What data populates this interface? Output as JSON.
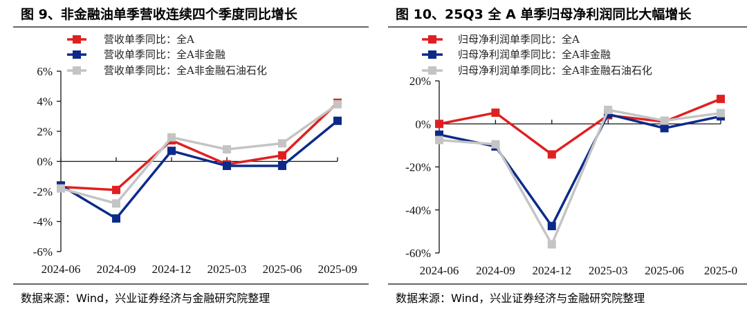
{
  "chart_data": [
    {
      "type": "line",
      "title": "图 9、非金融油单季营收连续四个季度同比增长",
      "categories": [
        "2024-06",
        "2024-09",
        "2024-12",
        "2025-03",
        "2025-06",
        "2025-09"
      ],
      "ylim": [
        -6,
        6
      ],
      "yticks": [
        6,
        4,
        2,
        0,
        -2,
        -4,
        -6
      ],
      "ytick_labels": [
        "6%",
        "4%",
        "2%",
        "0%",
        "-2%",
        "-4%",
        "-6%"
      ],
      "legend_position": "top-left",
      "grid": false,
      "series": [
        {
          "name": "营收单季同比：全A",
          "color": "#e02020",
          "values": [
            -1.7,
            -1.9,
            1.4,
            -0.2,
            0.4,
            3.9
          ]
        },
        {
          "name": "营收单季同比：全A非金融",
          "color": "#0c2a8a",
          "values": [
            -1.6,
            -3.8,
            0.7,
            -0.3,
            -0.3,
            2.7
          ]
        },
        {
          "name": "营收单季同比：全A非金融石油石化",
          "color": "#c4c4c4",
          "values": [
            -1.8,
            -2.8,
            1.6,
            0.8,
            1.2,
            3.8
          ]
        }
      ],
      "source": "数据来源：Wind，兴业证券经济与金融研究院整理"
    },
    {
      "type": "line",
      "title": "图 10、25Q3 全 A 单季归母净利润同比大幅增长",
      "categories": [
        "2024-06",
        "2024-09",
        "2024-12",
        "2025-03",
        "2025-06",
        "2025-0"
      ],
      "ylim": [
        -60,
        20
      ],
      "yticks": [
        20,
        0,
        -20,
        -40,
        -60
      ],
      "ytick_labels": [
        "20%",
        "0%",
        "-20%",
        "-40%",
        "-60%"
      ],
      "legend_position": "top-left",
      "grid": false,
      "series": [
        {
          "name": "归母净利润单季同比：全A",
          "color": "#e02020",
          "values": [
            0,
            5.2,
            -14.2,
            4,
            1,
            11.6
          ]
        },
        {
          "name": "归母净利润单季同比：全A非金融",
          "color": "#0c2a8a",
          "values": [
            -5,
            -10.5,
            -47.5,
            4.5,
            -2,
            3.5
          ]
        },
        {
          "name": "归母净利润单季同比：全A非金融石油石化",
          "color": "#c4c4c4",
          "values": [
            -7.5,
            -9.5,
            -56,
            6.5,
            1.5,
            5
          ]
        }
      ],
      "source": "数据来源：Wind，兴业证券经济与金融研究院整理"
    }
  ]
}
